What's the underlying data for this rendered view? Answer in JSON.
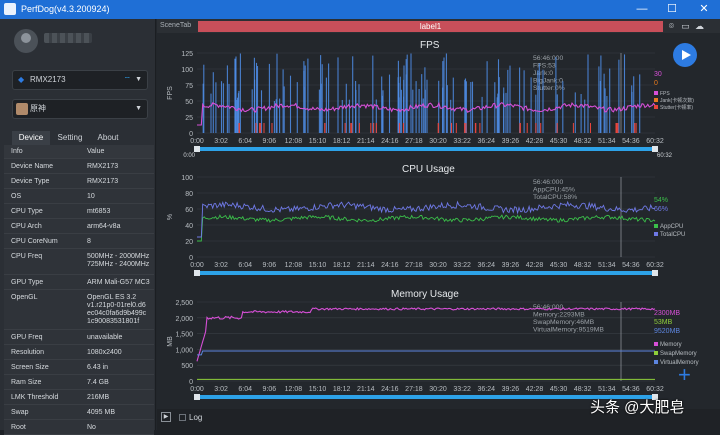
{
  "window": {
    "title": "PerfDog(v4.3.200924)",
    "min": "—",
    "max": "☐",
    "close": "✕"
  },
  "device_select": {
    "value": "RMX2173",
    "icon": "android-icon"
  },
  "app_select": {
    "value": "原神"
  },
  "tabs": [
    "Device",
    "Setting",
    "About"
  ],
  "info_header": {
    "k": "Info",
    "v": "Value"
  },
  "info": [
    {
      "k": "Device Name",
      "v": "RMX2173"
    },
    {
      "k": "Device Type",
      "v": "RMX2173"
    },
    {
      "k": "OS",
      "v": "10"
    },
    {
      "k": "CPU Type",
      "v": "mt6853"
    },
    {
      "k": "CPU Arch",
      "v": "arm64-v8a"
    },
    {
      "k": "CPU CoreNum",
      "v": "8"
    },
    {
      "k": "CPU Freq",
      "v": "500MHz - 2000MHz\n725MHz - 2400MHz"
    },
    {
      "k": "GPU Type",
      "v": "ARM Mali-G57 MC3"
    },
    {
      "k": "OpenGL",
      "v": "OpenGL ES 3.2\nv1.r21p0-01rel0.d6\nec04c0fa6d9b499c\n1c90083531801f"
    },
    {
      "k": "GPU Freq",
      "v": "unavailable"
    },
    {
      "k": "Resolution",
      "v": "1080x2400"
    },
    {
      "k": "Screen Size",
      "v": "6.43 in"
    },
    {
      "k": "Ram Size",
      "v": "7.4 GB"
    },
    {
      "k": "LMK Threshold",
      "v": "216MB"
    },
    {
      "k": "Swap",
      "v": "4095 MB"
    },
    {
      "k": "Root",
      "v": "No"
    }
  ],
  "scene": {
    "tab": "SceneTab",
    "label": "label1"
  },
  "x_ticks": [
    "0:00",
    "3:02",
    "6:04",
    "9:06",
    "12:08",
    "15:10",
    "18:12",
    "21:14",
    "24:16",
    "27:18",
    "30:20",
    "33:22",
    "36:24",
    "39:26",
    "42:28",
    "45:30",
    "48:32",
    "51:34",
    "54:36",
    "60:32"
  ],
  "colors": {
    "fps": "#d64fd6",
    "jank": "#e67a1e",
    "stutter": "#e8453c",
    "blue": "#4f8ee8",
    "app": "#3bbf4a",
    "total": "#6f79e6",
    "swap": "#8fcf3a",
    "virtual": "#5d86e0",
    "slider": "#2da2e8"
  },
  "fps": {
    "title": "FPS",
    "ylabel": "FPS",
    "yticks": [
      "125",
      "100",
      "75",
      "50",
      "25",
      "0"
    ],
    "tooltip": [
      "56:46:000",
      "FPS:53",
      "Jank:0",
      "BigJank:0",
      "Stutter:0%"
    ],
    "right_values": [
      "30",
      "0"
    ],
    "legend": [
      "FPS",
      "Jank(卡顿次数)",
      "Stutter(卡顿率)"
    ],
    "range_start": "0:00",
    "range_end": "60:32"
  },
  "cpu": {
    "title": "CPU Usage",
    "ylabel": "%",
    "yticks": [
      "100",
      "80",
      "60",
      "40",
      "20",
      "0"
    ],
    "tooltip": [
      "56:46:000",
      "AppCPU:45%",
      "TotalCPU:58%"
    ],
    "right_values": [
      "54%",
      "66%"
    ],
    "legend": [
      "AppCPU",
      "TotalCPU"
    ]
  },
  "mem": {
    "title": "Memory Usage",
    "ylabel": "MB",
    "yticks": [
      "2,500",
      "2,000",
      "1,500",
      "1,000",
      "500",
      "0"
    ],
    "tooltip": [
      "56:46:000",
      "Memory:2293MB",
      "SwapMemory:46MB",
      "VirtualMemory:9519MB"
    ],
    "right_values": [
      "2300MB",
      "53MB",
      "9520MB"
    ],
    "legend": [
      "Memory",
      "SwapMemory",
      "VirtualMemory"
    ]
  },
  "bottom": {
    "log": "Log"
  },
  "watermark": "头条 @大肥皂"
}
